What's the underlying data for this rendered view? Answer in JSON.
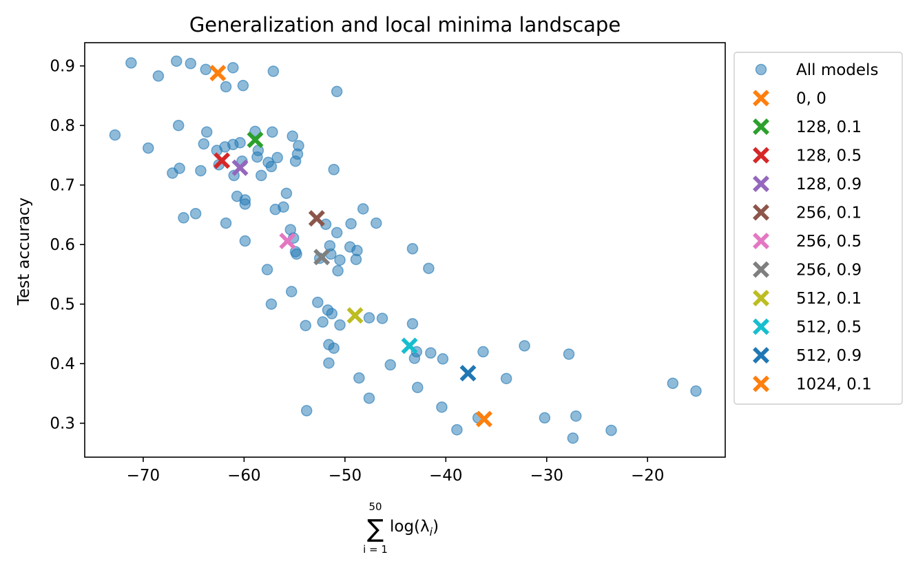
{
  "chart_data": {
    "type": "scatter",
    "title": "Generalization and local minima landscape",
    "xlabel_sum_top": "50",
    "xlabel_sum_symbol": "∑",
    "xlabel_sum_bottom": "i = 1",
    "xlabel_main": "log(λ",
    "xlabel_sub": "i",
    "xlabel_close": ")",
    "ylabel": "Test accuracy",
    "xlim": [
      -75.8,
      -12.3
    ],
    "ylim": [
      0.243,
      0.939
    ],
    "xticks": [
      -70,
      -60,
      -50,
      -40,
      -30,
      -20
    ],
    "xtick_labels": [
      "−70",
      "−60",
      "−50",
      "−40",
      "−30",
      "−20"
    ],
    "yticks": [
      0.3,
      0.4,
      0.5,
      0.6,
      0.7,
      0.8,
      0.9
    ],
    "ytick_labels": [
      "0.3",
      "0.4",
      "0.5",
      "0.6",
      "0.7",
      "0.8",
      "0.9"
    ],
    "grid": false,
    "legend_position": "outside-right-top",
    "background_series": {
      "name": "All models",
      "color": "#1f77b4",
      "points": [
        [
          -71.2,
          0.905
        ],
        [
          -66.7,
          0.908
        ],
        [
          -65.3,
          0.904
        ],
        [
          -63.8,
          0.894
        ],
        [
          -61.1,
          0.897
        ],
        [
          -57.1,
          0.891
        ],
        [
          -68.5,
          0.883
        ],
        [
          -61.8,
          0.865
        ],
        [
          -60.1,
          0.867
        ],
        [
          -50.8,
          0.857
        ],
        [
          -72.8,
          0.784
        ],
        [
          -66.5,
          0.8
        ],
        [
          -63.7,
          0.789
        ],
        [
          -58.9,
          0.79
        ],
        [
          -57.2,
          0.789
        ],
        [
          -55.2,
          0.782
        ],
        [
          -54.6,
          0.766
        ],
        [
          -64.0,
          0.769
        ],
        [
          -69.5,
          0.762
        ],
        [
          -62.7,
          0.758
        ],
        [
          -61.9,
          0.764
        ],
        [
          -61.1,
          0.768
        ],
        [
          -60.4,
          0.771
        ],
        [
          -58.6,
          0.758
        ],
        [
          -56.7,
          0.746
        ],
        [
          -54.7,
          0.752
        ],
        [
          -58.7,
          0.747
        ],
        [
          -54.9,
          0.74
        ],
        [
          -62.5,
          0.734
        ],
        [
          -60.2,
          0.74
        ],
        [
          -57.6,
          0.738
        ],
        [
          -57.3,
          0.731
        ],
        [
          -66.4,
          0.728
        ],
        [
          -64.3,
          0.724
        ],
        [
          -67.1,
          0.72
        ],
        [
          -61.0,
          0.716
        ],
        [
          -58.3,
          0.716
        ],
        [
          -51.1,
          0.726
        ],
        [
          -55.8,
          0.686
        ],
        [
          -60.7,
          0.681
        ],
        [
          -59.9,
          0.675
        ],
        [
          -59.9,
          0.668
        ],
        [
          -56.1,
          0.663
        ],
        [
          -56.9,
          0.659
        ],
        [
          -48.2,
          0.66
        ],
        [
          -66.0,
          0.645
        ],
        [
          -64.8,
          0.652
        ],
        [
          -61.8,
          0.636
        ],
        [
          -46.9,
          0.636
        ],
        [
          -49.4,
          0.635
        ],
        [
          -51.9,
          0.634
        ],
        [
          -55.4,
          0.625
        ],
        [
          -50.8,
          0.62
        ],
        [
          -55.1,
          0.611
        ],
        [
          -59.9,
          0.606
        ],
        [
          -51.5,
          0.598
        ],
        [
          -49.5,
          0.596
        ],
        [
          -48.8,
          0.59
        ],
        [
          -54.9,
          0.588
        ],
        [
          -54.8,
          0.584
        ],
        [
          -51.4,
          0.584
        ],
        [
          -52.5,
          0.577
        ],
        [
          -50.5,
          0.574
        ],
        [
          -48.9,
          0.575
        ],
        [
          -43.3,
          0.593
        ],
        [
          -57.7,
          0.558
        ],
        [
          -50.7,
          0.556
        ],
        [
          -41.7,
          0.56
        ],
        [
          -55.3,
          0.521
        ],
        [
          -57.3,
          0.5
        ],
        [
          -52.7,
          0.503
        ],
        [
          -51.7,
          0.49
        ],
        [
          -51.3,
          0.484
        ],
        [
          -52.2,
          0.47
        ],
        [
          -50.5,
          0.465
        ],
        [
          -47.6,
          0.477
        ],
        [
          -46.3,
          0.476
        ],
        [
          -43.3,
          0.467
        ],
        [
          -53.9,
          0.464
        ],
        [
          -51.6,
          0.432
        ],
        [
          -51.1,
          0.426
        ],
        [
          -51.6,
          0.401
        ],
        [
          -42.9,
          0.42
        ],
        [
          -43.1,
          0.409
        ],
        [
          -41.5,
          0.418
        ],
        [
          -40.3,
          0.408
        ],
        [
          -36.3,
          0.42
        ],
        [
          -32.2,
          0.43
        ],
        [
          -27.8,
          0.416
        ],
        [
          -45.5,
          0.398
        ],
        [
          -48.6,
          0.376
        ],
        [
          -42.8,
          0.36
        ],
        [
          -34.0,
          0.375
        ],
        [
          -47.6,
          0.342
        ],
        [
          -40.4,
          0.327
        ],
        [
          -53.8,
          0.321
        ],
        [
          -38.9,
          0.289
        ],
        [
          -36.8,
          0.309
        ],
        [
          -30.2,
          0.309
        ],
        [
          -27.1,
          0.312
        ],
        [
          -27.4,
          0.275
        ],
        [
          -23.6,
          0.288
        ],
        [
          -17.5,
          0.367
        ],
        [
          -15.2,
          0.354
        ]
      ]
    },
    "series": [
      {
        "name": "0, 0",
        "color": "#ff7f0e",
        "x": -62.6,
        "y": 0.888
      },
      {
        "name": "128, 0.1",
        "color": "#2ca02c",
        "x": -58.9,
        "y": 0.776
      },
      {
        "name": "128, 0.5",
        "color": "#d62728",
        "x": -62.2,
        "y": 0.741
      },
      {
        "name": "128, 0.9",
        "color": "#9467bd",
        "x": -60.4,
        "y": 0.729
      },
      {
        "name": "256, 0.1",
        "color": "#8c564b",
        "x": -52.8,
        "y": 0.644
      },
      {
        "name": "256, 0.5",
        "color": "#e377c2",
        "x": -55.7,
        "y": 0.606
      },
      {
        "name": "256, 0.9",
        "color": "#7f7f7f",
        "x": -52.3,
        "y": 0.579
      },
      {
        "name": "512, 0.1",
        "color": "#bcbd22",
        "x": -49.0,
        "y": 0.481
      },
      {
        "name": "512, 0.5",
        "color": "#17becf",
        "x": -43.6,
        "y": 0.43
      },
      {
        "name": "512, 0.9",
        "color": "#1f77b4",
        "x": -37.8,
        "y": 0.384
      },
      {
        "name": "1024, 0.1",
        "color": "#ff7f0e",
        "x": -36.2,
        "y": 0.307
      }
    ]
  }
}
